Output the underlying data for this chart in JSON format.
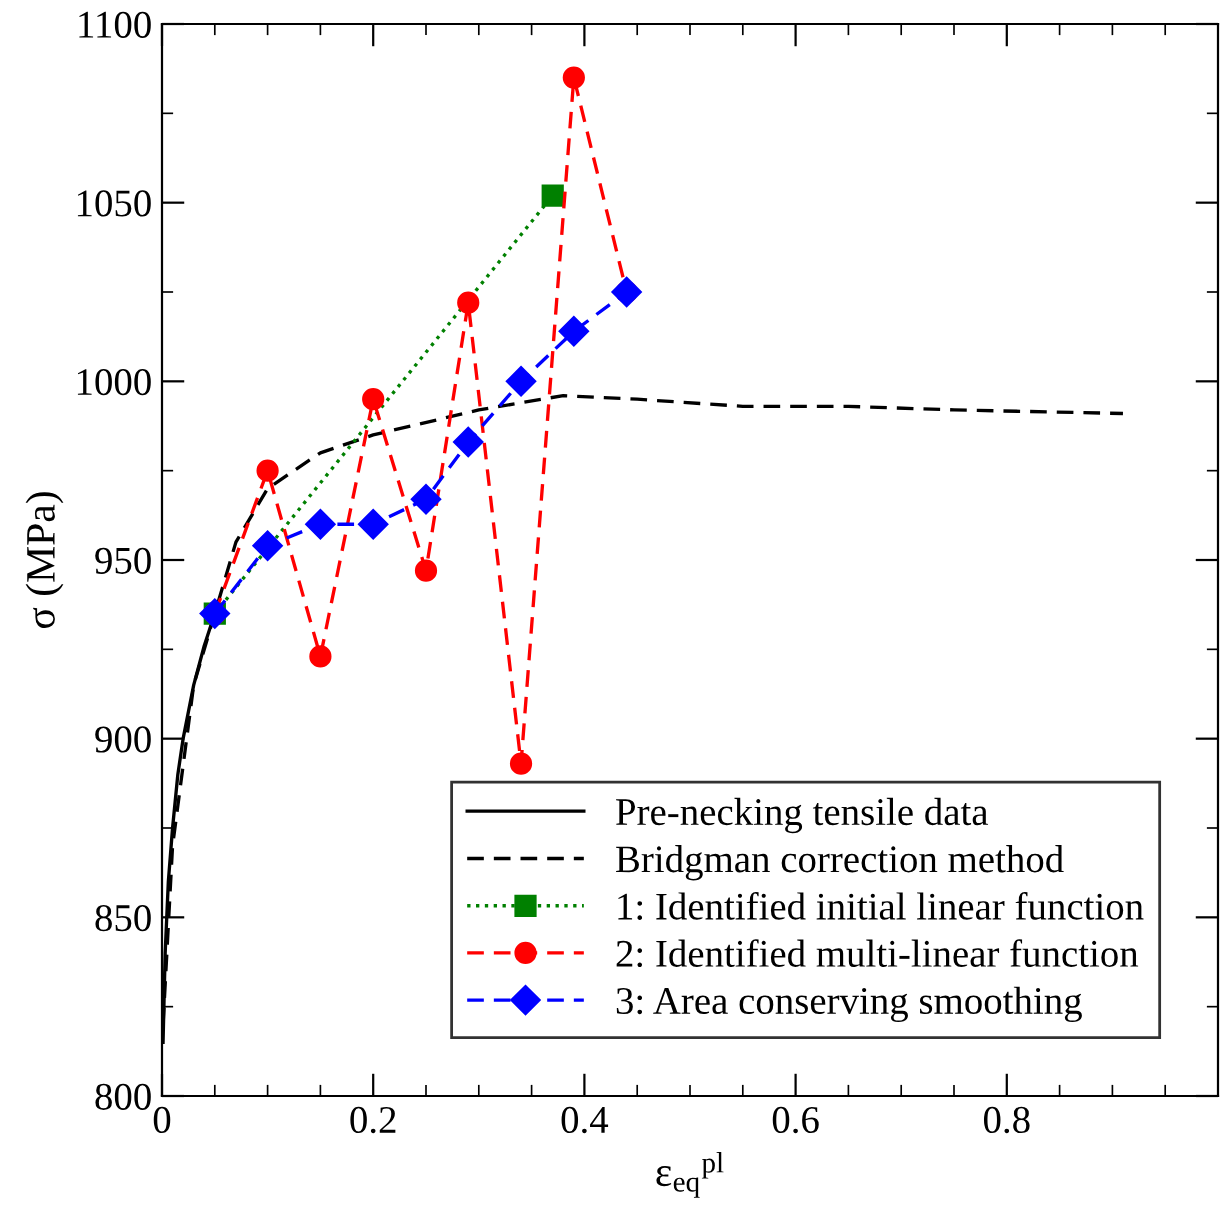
{
  "chart_data": {
    "type": "line",
    "xlabel": "ε$_{eq}$$^{pl}$",
    "ylabel": "σ (MPa)",
    "xlim": [
      0,
      1
    ],
    "ylim": [
      800,
      1100
    ],
    "xticks": [
      0,
      0.2,
      0.4,
      0.6,
      0.8
    ],
    "yticks": [
      800,
      850,
      900,
      950,
      1000,
      1050,
      1100
    ],
    "grid": false,
    "legend": "bottom right",
    "series": [
      {
        "name": "Pre-necking tensile data",
        "color": "#000000",
        "line_style": "solid",
        "marker": "none",
        "x": [
          0.001,
          0.003,
          0.006,
          0.01,
          0.015,
          0.02,
          0.03,
          0.04,
          0.05
        ],
        "values": [
          815,
          840,
          860,
          875,
          890,
          900,
          915,
          926,
          935
        ]
      },
      {
        "name": "Bridgman correction method",
        "color": "#000000",
        "line_style": "dashed",
        "marker": "none",
        "x": [
          0.001,
          0.01,
          0.03,
          0.05,
          0.07,
          0.1,
          0.15,
          0.2,
          0.3,
          0.38,
          0.45,
          0.55,
          0.65,
          0.75,
          0.91
        ],
        "values": [
          820,
          870,
          915,
          935,
          955,
          970,
          980,
          985,
          992,
          996,
          995,
          993,
          993,
          992,
          991
        ]
      },
      {
        "name": "1: Identified initial linear function",
        "color": "#008000",
        "line_style": "dotted",
        "marker": "square",
        "x": [
          0.05,
          0.37
        ],
        "values": [
          935,
          1052
        ]
      },
      {
        "name": "2: Identified multi-linear function",
        "color": "#ff0000",
        "line_style": "dashed",
        "marker": "circle",
        "x": [
          0.05,
          0.1,
          0.15,
          0.2,
          0.25,
          0.29,
          0.34,
          0.39,
          0.44
        ],
        "values": [
          935,
          975,
          923,
          995,
          947,
          1022,
          893,
          1085,
          1025
        ]
      },
      {
        "name": "3: Area conserving smoothing",
        "color": "#0000ff",
        "line_style": "dashed",
        "marker": "diamond",
        "x": [
          0.05,
          0.1,
          0.15,
          0.2,
          0.25,
          0.29,
          0.34,
          0.39,
          0.44
        ],
        "values": [
          935,
          954,
          960,
          960,
          967,
          983,
          1000,
          1014,
          1025
        ]
      }
    ]
  }
}
